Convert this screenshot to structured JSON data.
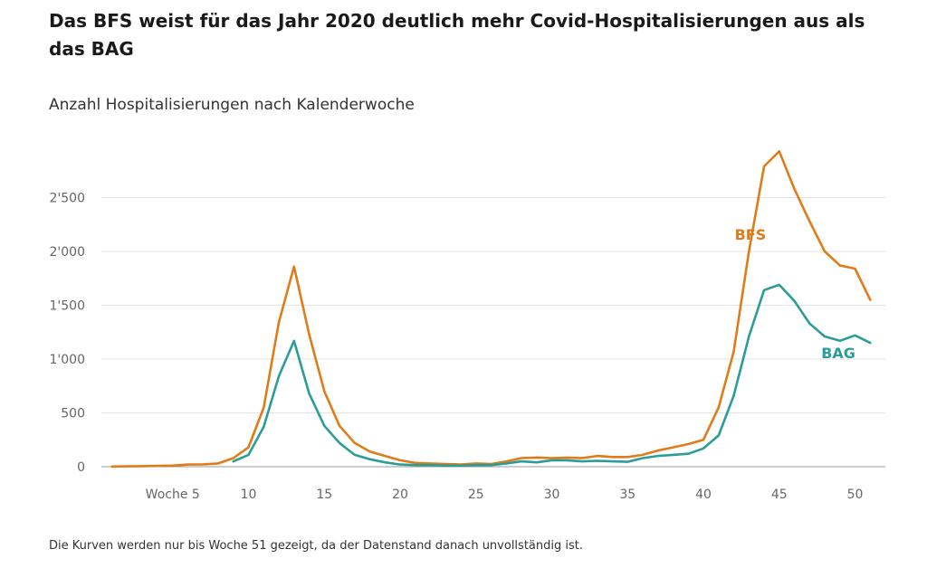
{
  "title": "Das BFS weist für das Jahr 2020 deutlich mehr Covid-Hospitalisierungen aus als das BAG",
  "subtitle": "Anzahl Hospitalisierungen nach Kalenderwoche",
  "footnote": "Die Kurven werden nur bis Woche 51 gezeigt, da der Datenstand danach unvollständig ist.",
  "chart_data": {
    "type": "line",
    "title": "Das BFS weist für das Jahr 2020 deutlich mehr Covid-Hospitalisierungen aus als das BAG",
    "subtitle": "Anzahl Hospitalisierungen nach Kalenderwoche",
    "xlabel": "",
    "ylabel": "",
    "xlim": [
      0,
      52
    ],
    "ylim": [
      0,
      3000
    ],
    "x_ticks": [
      {
        "value": 5,
        "label": "Woche 5"
      },
      {
        "value": 10,
        "label": "10"
      },
      {
        "value": 15,
        "label": "15"
      },
      {
        "value": 20,
        "label": "20"
      },
      {
        "value": 25,
        "label": "25"
      },
      {
        "value": 30,
        "label": "30"
      },
      {
        "value": 35,
        "label": "35"
      },
      {
        "value": 40,
        "label": "40"
      },
      {
        "value": 45,
        "label": "45"
      },
      {
        "value": 50,
        "label": "50"
      }
    ],
    "y_ticks": [
      {
        "value": 0,
        "label": "0"
      },
      {
        "value": 500,
        "label": "500"
      },
      {
        "value": 1000,
        "label": "1'000"
      },
      {
        "value": 1500,
        "label": "1'500"
      },
      {
        "value": 2000,
        "label": "2'000"
      },
      {
        "value": 2500,
        "label": "2'500"
      }
    ],
    "grid": true,
    "series": [
      {
        "name": "BFS",
        "color": "#e07b1a",
        "x": [
          1,
          2,
          3,
          4,
          5,
          6,
          7,
          8,
          9,
          10,
          11,
          12,
          13,
          14,
          15,
          16,
          17,
          18,
          19,
          20,
          21,
          22,
          23,
          24,
          25,
          26,
          27,
          28,
          29,
          30,
          31,
          32,
          33,
          34,
          35,
          36,
          37,
          38,
          39,
          40,
          41,
          42,
          43,
          44,
          45,
          46,
          47,
          48,
          49,
          50,
          51
        ],
        "y": [
          2,
          3,
          5,
          8,
          10,
          20,
          22,
          30,
          80,
          180,
          550,
          1340,
          1860,
          1230,
          700,
          380,
          220,
          140,
          100,
          60,
          35,
          30,
          25,
          20,
          30,
          25,
          50,
          80,
          85,
          80,
          85,
          80,
          100,
          90,
          90,
          110,
          150,
          180,
          210,
          250,
          550,
          1070,
          2000,
          2790,
          2930,
          2580,
          2280,
          2000,
          1870,
          1840,
          1550
        ],
        "label_pos": {
          "x": 43.1,
          "y": 2110
        }
      },
      {
        "name": "BAG",
        "color": "#2a9d98",
        "x": [
          9,
          10,
          11,
          12,
          13,
          14,
          15,
          16,
          17,
          18,
          19,
          20,
          21,
          22,
          23,
          24,
          25,
          26,
          27,
          28,
          29,
          30,
          31,
          32,
          33,
          34,
          35,
          36,
          37,
          38,
          39,
          40,
          41,
          42,
          43,
          44,
          45,
          46,
          47,
          48,
          49,
          50,
          51
        ],
        "y": [
          50,
          110,
          370,
          840,
          1170,
          680,
          380,
          220,
          110,
          70,
          40,
          20,
          15,
          15,
          10,
          10,
          15,
          15,
          30,
          50,
          40,
          60,
          60,
          50,
          55,
          50,
          45,
          80,
          100,
          110,
          120,
          170,
          290,
          660,
          1210,
          1640,
          1690,
          1540,
          1330,
          1210,
          1170,
          1220,
          1150
        ],
        "label_pos": {
          "x": 48.9,
          "y": 1010
        }
      }
    ]
  }
}
